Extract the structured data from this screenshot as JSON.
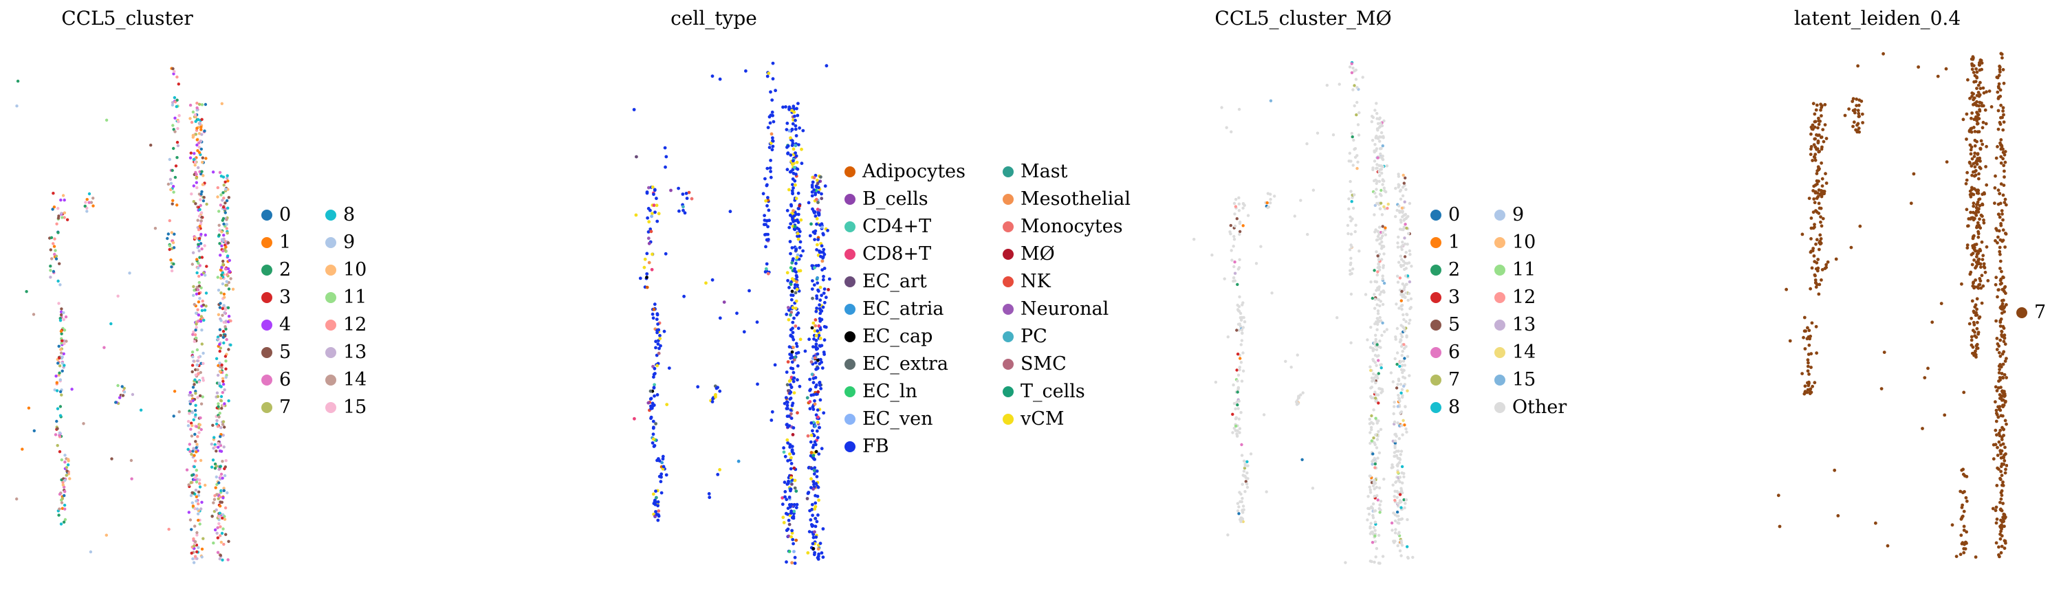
{
  "figure": {
    "panels": [
      {
        "title": "CCL5_cluster",
        "legend_cols": [
          [
            {
              "label": "0",
              "color": "#1f77b4"
            },
            {
              "label": "1",
              "color": "#ff7f0e"
            },
            {
              "label": "2",
              "color": "#279e68"
            },
            {
              "label": "3",
              "color": "#d62728"
            },
            {
              "label": "4",
              "color": "#aa40fc"
            },
            {
              "label": "5",
              "color": "#8c564b"
            },
            {
              "label": "6",
              "color": "#e377c2"
            },
            {
              "label": "7",
              "color": "#b5bd61"
            }
          ],
          [
            {
              "label": "8",
              "color": "#17becf"
            },
            {
              "label": "9",
              "color": "#aec7e8"
            },
            {
              "label": "10",
              "color": "#ffbb78"
            },
            {
              "label": "11",
              "color": "#98df8a"
            },
            {
              "label": "12",
              "color": "#ff9896"
            },
            {
              "label": "13",
              "color": "#c5b0d5"
            },
            {
              "label": "14",
              "color": "#c49c94"
            },
            {
              "label": "15",
              "color": "#f7b6d2"
            }
          ]
        ]
      },
      {
        "title": "cell_type",
        "legend_cols": [
          [
            {
              "label": "Adipocytes",
              "color": "#d95f02"
            },
            {
              "label": "B_cells",
              "color": "#8e44ad"
            },
            {
              "label": "CD4+T",
              "color": "#48c9b0"
            },
            {
              "label": "CD8+T",
              "color": "#ec407a"
            },
            {
              "label": "EC_art",
              "color": "#6a4c7a"
            },
            {
              "label": "EC_atria",
              "color": "#3498db"
            },
            {
              "label": "EC_cap",
              "color": "#000000"
            },
            {
              "label": "EC_extra",
              "color": "#5d6d6e"
            },
            {
              "label": "EC_ln",
              "color": "#2ecc71"
            },
            {
              "label": "EC_ven",
              "color": "#8ab4f8"
            },
            {
              "label": "FB",
              "color": "#1533e8"
            }
          ],
          [
            {
              "label": "Mast",
              "color": "#2e9e8f"
            },
            {
              "label": "Mesothelial",
              "color": "#f39150"
            },
            {
              "label": "Monocytes",
              "color": "#ef6f6c"
            },
            {
              "label": "MØ",
              "color": "#b3162b"
            },
            {
              "label": "NK",
              "color": "#e74c3c"
            },
            {
              "label": "Neuronal",
              "color": "#9b59b6"
            },
            {
              "label": "PC",
              "color": "#45b0c4"
            },
            {
              "label": "SMC",
              "color": "#b5687c"
            },
            {
              "label": "T_cells",
              "color": "#1a9e77"
            },
            {
              "label": "vCM",
              "color": "#f5de1b"
            }
          ]
        ]
      },
      {
        "title": "CCL5_cluster_MØ",
        "legend_cols": [
          [
            {
              "label": "0",
              "color": "#1f77b4"
            },
            {
              "label": "1",
              "color": "#ff7f0e"
            },
            {
              "label": "2",
              "color": "#279e68"
            },
            {
              "label": "3",
              "color": "#d62728"
            },
            {
              "label": "5",
              "color": "#8c564b"
            },
            {
              "label": "6",
              "color": "#e377c2"
            },
            {
              "label": "7",
              "color": "#b5bd61"
            },
            {
              "label": "8",
              "color": "#17becf"
            }
          ],
          [
            {
              "label": "9",
              "color": "#aec7e8"
            },
            {
              "label": "10",
              "color": "#ffbb78"
            },
            {
              "label": "11",
              "color": "#98df8a"
            },
            {
              "label": "12",
              "color": "#ff9896"
            },
            {
              "label": "13",
              "color": "#c5b0d5"
            },
            {
              "label": "14",
              "color": "#f1dc7a"
            },
            {
              "label": "15",
              "color": "#7fb5dd"
            },
            {
              "label": "Other",
              "color": "#dcdcdc"
            }
          ]
        ]
      },
      {
        "title": "latent_leiden_0.4",
        "legend_cols": [
          [
            {
              "label": "7",
              "color": "#8b4513"
            }
          ]
        ]
      }
    ]
  },
  "chart_data": [
    {
      "type": "scatter",
      "title": "CCL5_cluster",
      "xlabel": "",
      "ylabel": "",
      "grid": false,
      "axes_visible": false,
      "legend_position": "right",
      "color_by": "CCL5_cluster",
      "categories": [
        "0",
        "1",
        "2",
        "3",
        "4",
        "5",
        "6",
        "7",
        "8",
        "9",
        "10",
        "11",
        "12",
        "13",
        "14",
        "15"
      ]
    },
    {
      "type": "scatter",
      "title": "cell_type",
      "xlabel": "",
      "ylabel": "",
      "grid": false,
      "axes_visible": false,
      "legend_position": "right",
      "color_by": "cell_type",
      "categories": [
        "Adipocytes",
        "B_cells",
        "CD4+T",
        "CD8+T",
        "EC_art",
        "EC_atria",
        "EC_cap",
        "EC_extra",
        "EC_ln",
        "EC_ven",
        "FB",
        "Mast",
        "Mesothelial",
        "Monocytes",
        "MØ",
        "NK",
        "Neuronal",
        "PC",
        "SMC",
        "T_cells",
        "vCM"
      ]
    },
    {
      "type": "scatter",
      "title": "CCL5_cluster_MØ",
      "xlabel": "",
      "ylabel": "",
      "grid": false,
      "axes_visible": false,
      "legend_position": "right",
      "color_by": "CCL5_cluster_MØ",
      "categories": [
        "0",
        "1",
        "2",
        "3",
        "5",
        "6",
        "7",
        "8",
        "9",
        "10",
        "11",
        "12",
        "13",
        "14",
        "15",
        "Other"
      ]
    },
    {
      "type": "scatter",
      "title": "latent_leiden_0.4",
      "xlabel": "",
      "ylabel": "",
      "grid": false,
      "axes_visible": false,
      "legend_position": "right",
      "color_by": "latent_leiden_0.4",
      "categories": [
        "7"
      ]
    }
  ]
}
